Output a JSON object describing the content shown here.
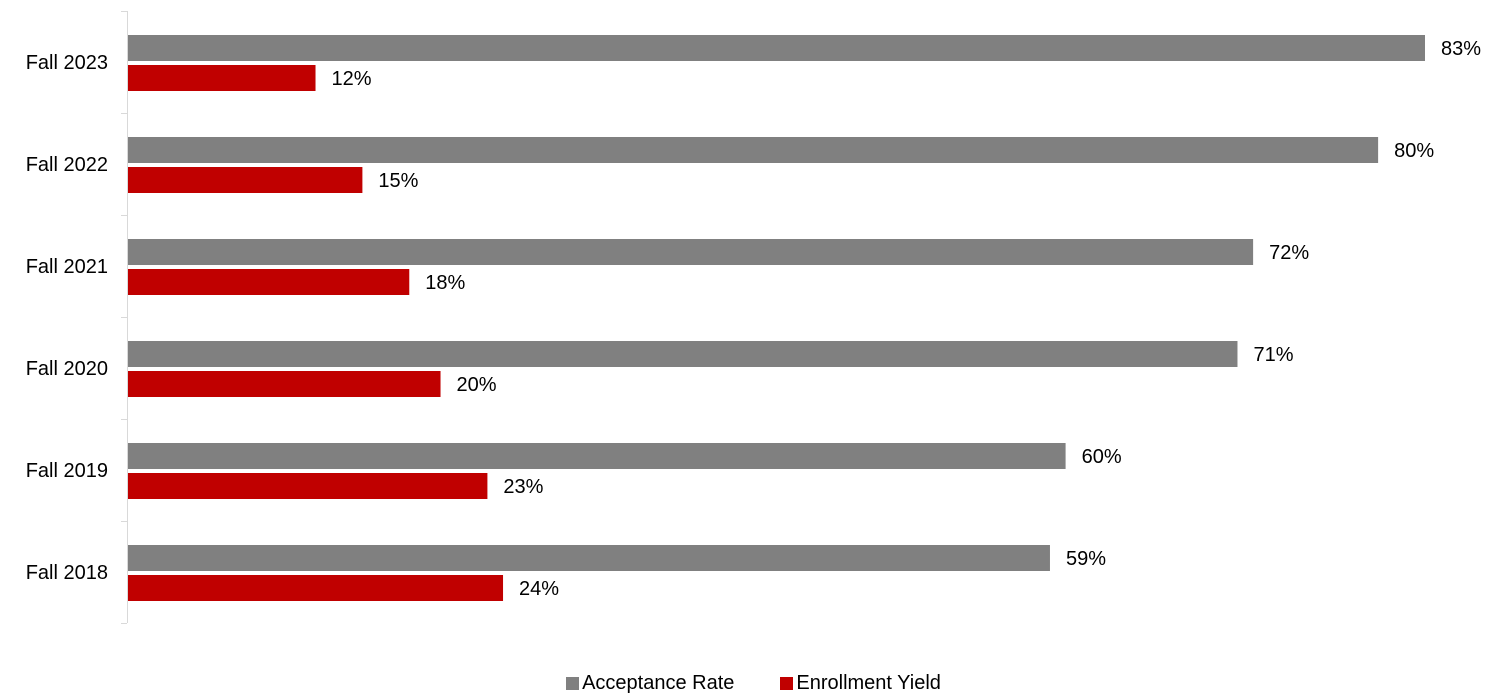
{
  "chart_data": {
    "type": "bar",
    "orientation": "horizontal",
    "categories": [
      "Fall 2023",
      "Fall 2022",
      "Fall 2021",
      "Fall 2020",
      "Fall 2019",
      "Fall 2018"
    ],
    "series": [
      {
        "name": "Acceptance Rate",
        "color": "#808080",
        "values": [
          83,
          80,
          72,
          71,
          60,
          59
        ],
        "labels": [
          "83%",
          "80%",
          "72%",
          "71%",
          "60%",
          "59%"
        ]
      },
      {
        "name": "Enrollment Yield",
        "color": "#c00000",
        "values": [
          12,
          15,
          18,
          20,
          23,
          24
        ],
        "labels": [
          "12%",
          "15%",
          "18%",
          "20%",
          "23%",
          "24%"
        ]
      }
    ],
    "title": "",
    "xlabel": "",
    "ylabel": "",
    "xlim": [
      0,
      83
    ],
    "grid": false,
    "legend_position": "bottom"
  }
}
